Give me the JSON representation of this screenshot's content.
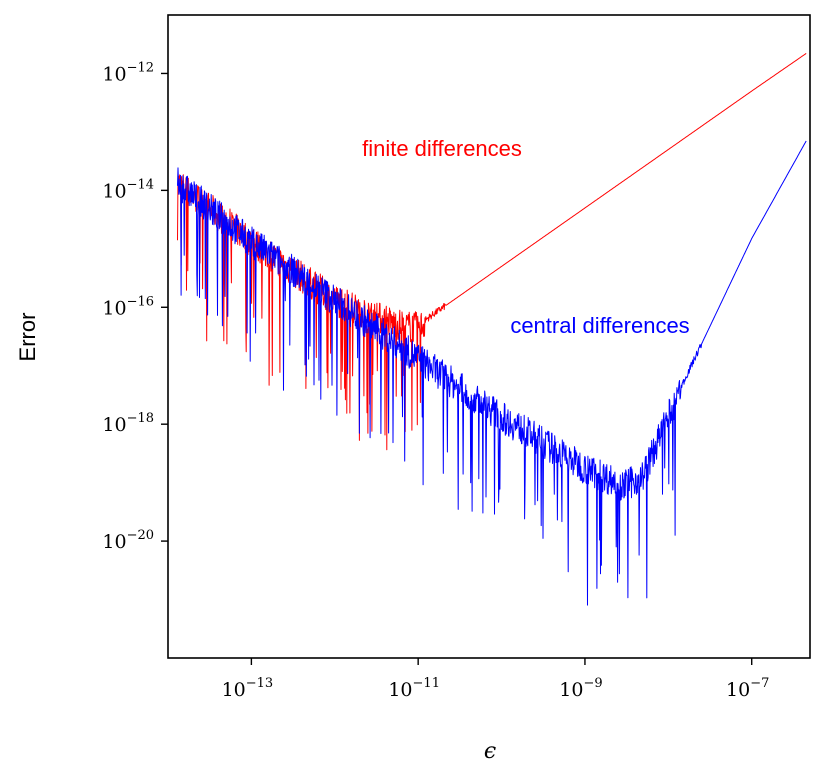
{
  "chart_data": {
    "type": "line",
    "xlabel": "ϵ",
    "ylabel": "Error",
    "xscale": "log",
    "yscale": "log",
    "xlim": [
      1e-14,
      5e-07
    ],
    "ylim": [
      1e-22,
      1e-11
    ],
    "grid": false,
    "xticks": [
      {
        "value": 1e-13,
        "base": "10",
        "exp": "−13"
      },
      {
        "value": 1e-11,
        "base": "10",
        "exp": "−11"
      },
      {
        "value": 1e-09,
        "base": "10",
        "exp": "−9"
      },
      {
        "value": 1e-07,
        "base": "10",
        "exp": "−7"
      }
    ],
    "yticks": [
      {
        "value": 1e-12,
        "base": "10",
        "exp": "−12"
      },
      {
        "value": 1e-14,
        "base": "10",
        "exp": "−14"
      },
      {
        "value": 1e-16,
        "base": "10",
        "exp": "−16"
      },
      {
        "value": 1e-18,
        "base": "10",
        "exp": "−18"
      },
      {
        "value": 1e-20,
        "base": "10",
        "exp": "−20"
      }
    ],
    "series": [
      {
        "name": "finite differences",
        "color": "#ff0000",
        "x": [
          1.3e-14,
          1e-13,
          1e-12,
          5e-12,
          1e-11,
          2e-11,
          1e-10,
          1e-09,
          1e-08,
          1e-07,
          4.5e-07
        ],
        "y": [
          1.5e-14,
          1.5e-15,
          1.5e-16,
          6e-17,
          5e-17,
          1e-16,
          5e-16,
          5e-15,
          5e-14,
          5e-13,
          2.2e-12
        ]
      },
      {
        "name": "central differences",
        "color": "#0000ff",
        "x": [
          1.3e-14,
          1e-13,
          1e-12,
          1e-11,
          1e-10,
          1e-09,
          3e-09,
          5e-09,
          1e-08,
          1e-07,
          4.5e-07
        ],
        "y": [
          1.5e-14,
          1.5e-15,
          1.5e-16,
          1.5e-17,
          1.5e-18,
          2e-19,
          1e-19,
          1.5e-19,
          1.5e-18,
          1.5e-15,
          7e-14
        ]
      }
    ],
    "annotations": [
      {
        "text": "finite differences",
        "color": "#ff0000"
      },
      {
        "text": "central differences",
        "color": "#0000ff"
      }
    ]
  }
}
